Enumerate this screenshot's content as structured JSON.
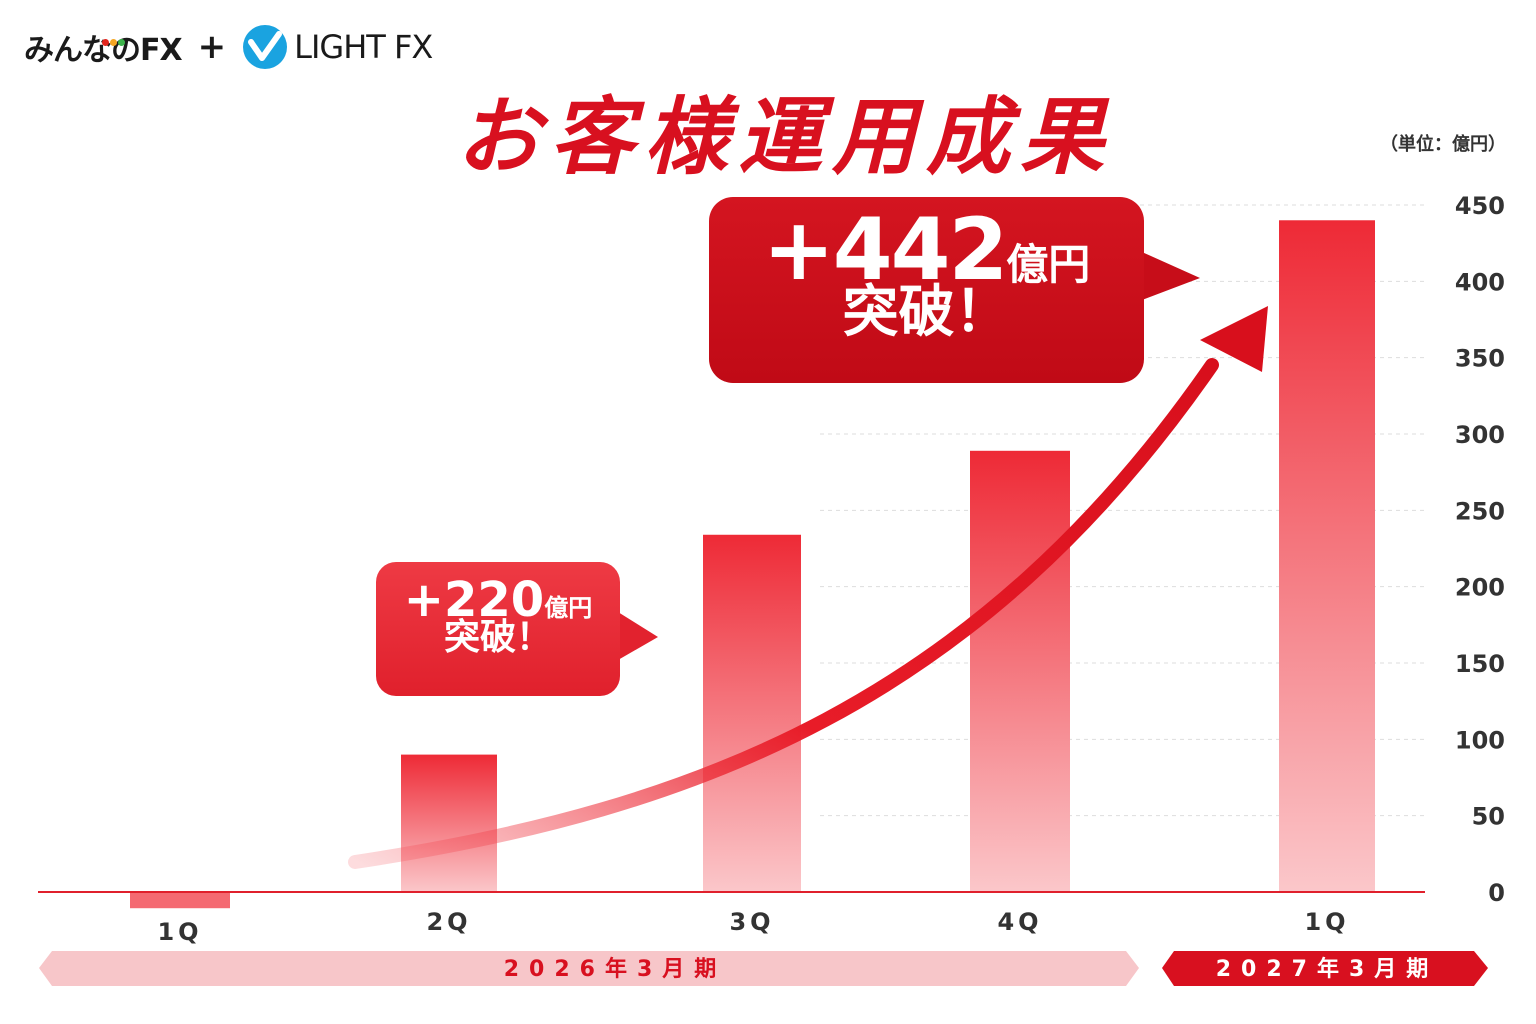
{
  "logos": {
    "minna": "みんなのFX",
    "plus": "+",
    "light": "LIGHT FX",
    "dot_colors": [
      "#e2241c",
      "#f5a623",
      "#3cb44b"
    ]
  },
  "colors": {
    "accent": "#d8101f",
    "bar": "#f0444e",
    "axis": "#e0202c",
    "period_past": "#f7c6c9",
    "period_current": "#d8101f"
  },
  "unit_label": "（単位：億円）",
  "callouts": {
    "small": {
      "amount": "+220",
      "yen": "億円",
      "sub": "突破！"
    },
    "big": {
      "amount": "+442",
      "yen": "億円",
      "sub": "突破！"
    }
  },
  "periods": [
    {
      "label": "2026年3月期"
    },
    {
      "label": "2027年3月期"
    }
  ],
  "chart_data": {
    "type": "bar",
    "title": "お客様運用成果",
    "categories": [
      "1Q",
      "2Q",
      "3Q",
      "4Q",
      "1Q"
    ],
    "values": [
      -8,
      90,
      234,
      289,
      440
    ],
    "ylim": [
      0,
      450
    ],
    "yticks": [
      0,
      50,
      100,
      150,
      200,
      250,
      300,
      350,
      400,
      450
    ],
    "grid": true,
    "axis_side": "right"
  }
}
